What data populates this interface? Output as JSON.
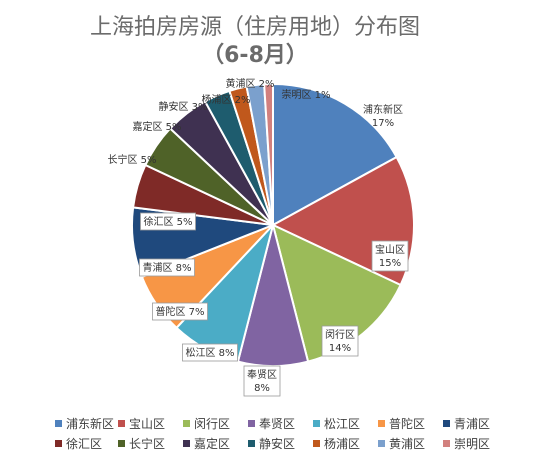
{
  "chart_data": {
    "type": "pie",
    "title_line1": "上海拍房房源（住房用地）分布图",
    "title_line2": "（6-8月）",
    "categories": [
      "浦东新区",
      "宝山区",
      "闵行区",
      "奉贤区",
      "松江区",
      "普陀区",
      "青浦区",
      "徐汇区",
      "长宁区",
      "嘉定区",
      "静安区",
      "杨浦区",
      "黄浦区",
      "崇明区"
    ],
    "values": [
      17,
      15,
      14,
      8,
      8,
      7,
      8,
      5,
      5,
      5,
      3,
      2,
      2,
      1
    ],
    "value_labels": [
      "17%",
      "15%",
      "14%",
      "8%",
      "8%",
      "7%",
      "8%",
      "5%",
      "5%",
      "5%",
      "3%",
      "2%",
      "2%",
      "1%"
    ],
    "colors": [
      "#4f81bd",
      "#c0504d",
      "#9bbb59",
      "#8064a2",
      "#4bacc6",
      "#f79646",
      "#1f497d",
      "#7f2a27",
      "#4f6228",
      "#3f3151",
      "#1e5c6e",
      "#c0581c",
      "#7ba0cd",
      "#d2807e"
    ],
    "legend_position": "bottom"
  }
}
